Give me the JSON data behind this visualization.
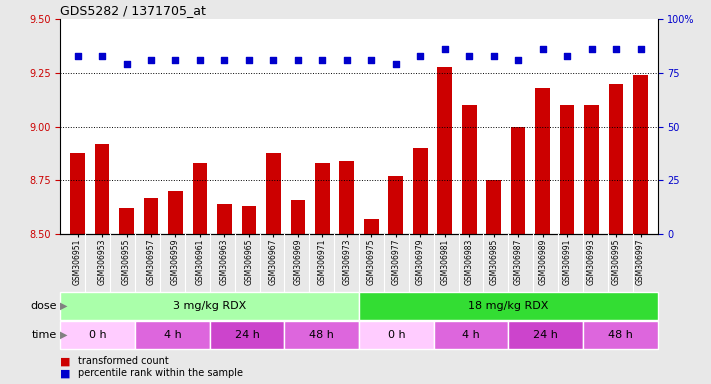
{
  "title": "GDS5282 / 1371705_at",
  "samples": [
    "GSM306951",
    "GSM306953",
    "GSM306955",
    "GSM306957",
    "GSM306959",
    "GSM306961",
    "GSM306963",
    "GSM306965",
    "GSM306967",
    "GSM306969",
    "GSM306971",
    "GSM306973",
    "GSM306975",
    "GSM306977",
    "GSM306979",
    "GSM306981",
    "GSM306983",
    "GSM306985",
    "GSM306987",
    "GSM306989",
    "GSM306991",
    "GSM306993",
    "GSM306995",
    "GSM306997"
  ],
  "bar_values": [
    8.88,
    8.92,
    8.62,
    8.67,
    8.7,
    8.83,
    8.64,
    8.63,
    8.88,
    8.66,
    8.83,
    8.84,
    8.57,
    8.77,
    8.9,
    9.28,
    9.1,
    8.75,
    9.0,
    9.18,
    9.1,
    9.1,
    9.2,
    9.24
  ],
  "percentile_values": [
    83,
    83,
    79,
    81,
    81,
    81,
    81,
    81,
    81,
    81,
    81,
    81,
    81,
    79,
    83,
    86,
    83,
    83,
    81,
    86,
    83,
    86,
    86,
    86
  ],
  "bar_color": "#cc0000",
  "percentile_color": "#0000cc",
  "ylim_left": [
    8.5,
    9.5
  ],
  "ylim_right": [
    0,
    100
  ],
  "yticks_left": [
    8.5,
    8.75,
    9.0,
    9.25,
    9.5
  ],
  "yticks_right": [
    0,
    25,
    50,
    75,
    100
  ],
  "grid_values": [
    8.75,
    9.0,
    9.25
  ],
  "dose_labels": [
    {
      "text": "3 mg/kg RDX",
      "start": 0,
      "end": 12,
      "color": "#aaffaa"
    },
    {
      "text": "18 mg/kg RDX",
      "start": 12,
      "end": 24,
      "color": "#33dd33"
    }
  ],
  "time_groups": [
    {
      "text": "0 h",
      "start": 0,
      "end": 3,
      "color": "#ffccff"
    },
    {
      "text": "4 h",
      "start": 3,
      "end": 6,
      "color": "#dd66dd"
    },
    {
      "text": "24 h",
      "start": 6,
      "end": 9,
      "color": "#cc44cc"
    },
    {
      "text": "48 h",
      "start": 9,
      "end": 12,
      "color": "#dd66dd"
    },
    {
      "text": "0 h",
      "start": 12,
      "end": 15,
      "color": "#ffccff"
    },
    {
      "text": "4 h",
      "start": 15,
      "end": 18,
      "color": "#dd66dd"
    },
    {
      "text": "24 h",
      "start": 18,
      "end": 21,
      "color": "#cc44cc"
    },
    {
      "text": "48 h",
      "start": 21,
      "end": 24,
      "color": "#dd66dd"
    }
  ],
  "legend_red": "transformed count",
  "legend_blue": "percentile rank within the sample",
  "background_color": "#e8e8e8",
  "plot_bg": "#ffffff",
  "label_bg": "#d8d8d8"
}
